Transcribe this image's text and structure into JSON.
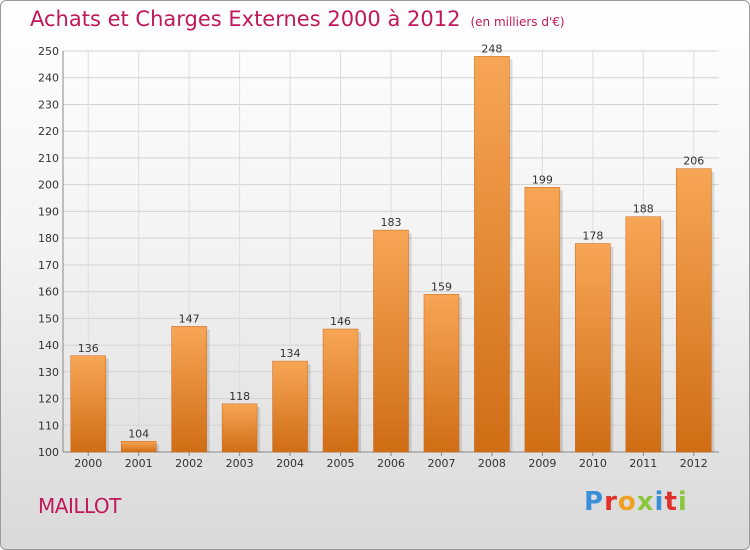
{
  "title": "Achats et Charges Externes 2000 à 2012",
  "unit": "(en milliers d'€)",
  "commune": "MAILLOT",
  "logo_text": "Proxiti",
  "colors": {
    "title": "#c0185a",
    "bar_top": "#f7a655",
    "bar_bottom": "#d06d15"
  },
  "chart_data": {
    "type": "bar",
    "title": "Achats et Charges Externes 2000 à 2012",
    "subtitle": "(en milliers d'€)",
    "xlabel": "",
    "ylabel": "",
    "categories": [
      "2000",
      "2001",
      "2002",
      "2003",
      "2004",
      "2005",
      "2006",
      "2007",
      "2008",
      "2009",
      "2010",
      "2011",
      "2012"
    ],
    "values": [
      136,
      104,
      147,
      118,
      134,
      146,
      183,
      159,
      248,
      199,
      178,
      188,
      206
    ],
    "ylim": [
      100,
      250
    ],
    "yticks": [
      100,
      110,
      120,
      130,
      140,
      150,
      160,
      170,
      180,
      190,
      200,
      210,
      220,
      230,
      240,
      250
    ],
    "grid": true,
    "data_labels": true,
    "legend": "none"
  }
}
